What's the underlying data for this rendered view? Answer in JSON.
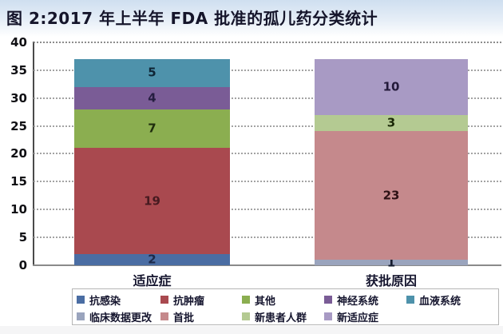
{
  "chart_data": {
    "type": "bar",
    "stacked": true,
    "title": "图 2:2017 年上半年 FDA 批准的孤儿药分类统计",
    "categories": [
      "适应症",
      "获批原因"
    ],
    "xlabel": "",
    "ylabel": "",
    "ylim": [
      0,
      40
    ],
    "ytick_step": 5,
    "yticks": [
      0,
      5,
      10,
      15,
      20,
      25,
      30,
      35,
      40
    ],
    "grid": "horizontal-dotted",
    "legend_position": "bottom",
    "stacks": [
      {
        "category": "适应症",
        "segments": [
          {
            "label": "抗感染",
            "value": 2,
            "color": "#4a6da3",
            "label_color": "#1c2a4a"
          },
          {
            "label": "抗肿瘤",
            "value": 19,
            "color": "#a9494f",
            "label_color": "#471a20"
          },
          {
            "label": "其他",
            "value": 7,
            "color": "#8bae50",
            "label_color": "#1f2d0d"
          },
          {
            "label": "神经系统",
            "value": 4,
            "color": "#7a5c96",
            "label_color": "#251d40"
          },
          {
            "label": "血液系统",
            "value": 5,
            "color": "#4e92ab",
            "label_color": "#0f2535"
          }
        ]
      },
      {
        "category": "获批原因",
        "segments": [
          {
            "label": "临床数据更改",
            "value": 1,
            "color": "#9aa4bd",
            "label_color": "#151c2e"
          },
          {
            "label": "首批",
            "value": 23,
            "color": "#c5898c",
            "label_color": "#2e1215"
          },
          {
            "label": "新患者人群",
            "value": 3,
            "color": "#b4ca92",
            "label_color": "#1a2706"
          },
          {
            "label": "新适应症",
            "value": 10,
            "color": "#a89ac4",
            "label_color": "#231a3a"
          }
        ]
      }
    ],
    "legend_rows": [
      [
        "抗感染",
        "抗肿瘤",
        "其他",
        "神经系统",
        "血液系统"
      ],
      [
        "临床数据更改",
        "首批",
        "新患者人群",
        "新适应症"
      ]
    ]
  }
}
